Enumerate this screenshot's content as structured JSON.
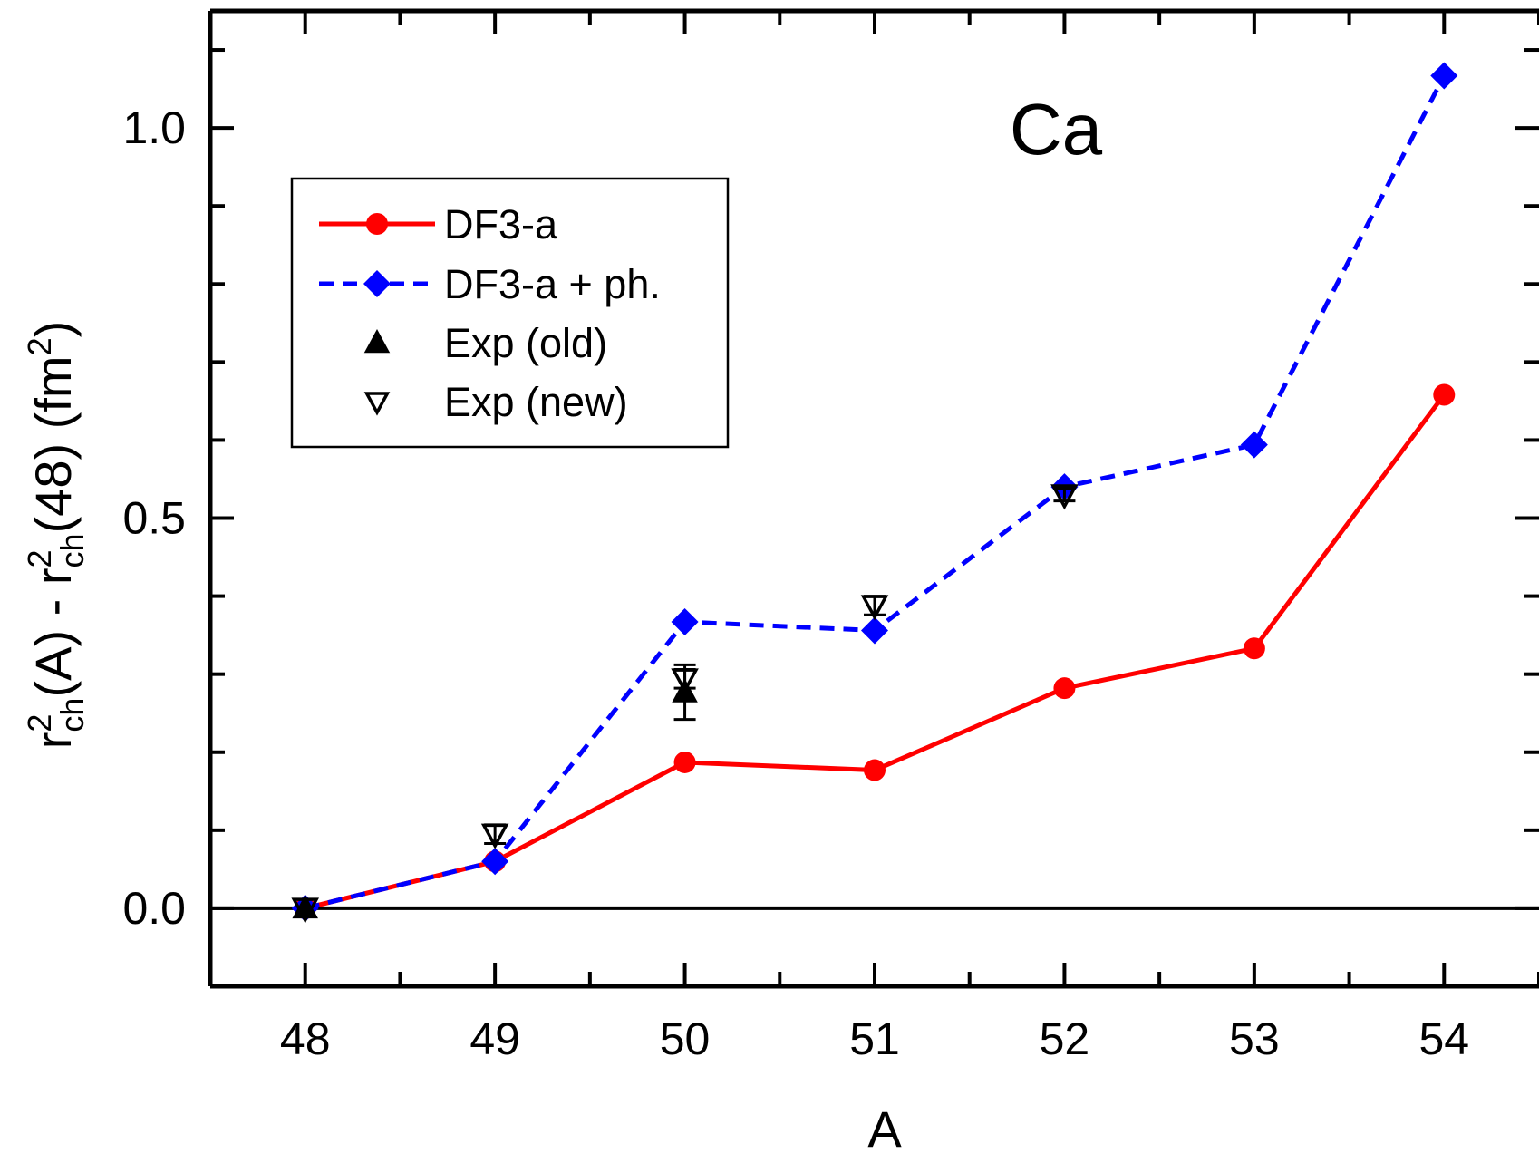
{
  "chart_data": {
    "type": "line",
    "annotation": "Ca",
    "xlabel": "A",
    "ylabel_parts": [
      "r",
      "2",
      "ch",
      "(A) - r",
      "2",
      "ch",
      "(48) (fm",
      "2",
      ")"
    ],
    "x": [
      48,
      49,
      50,
      51,
      52,
      53,
      54
    ],
    "xlim": [
      47.5,
      54.5
    ],
    "ylim": [
      -0.1,
      1.15
    ],
    "xticks": [
      {
        "value": 48,
        "label": "48"
      },
      {
        "value": 49,
        "label": "49"
      },
      {
        "value": 50,
        "label": "50"
      },
      {
        "value": 51,
        "label": "51"
      },
      {
        "value": 52,
        "label": "52"
      },
      {
        "value": 53,
        "label": "53"
      },
      {
        "value": 54,
        "label": "54"
      }
    ],
    "yticks": [
      {
        "value": 0.0,
        "label": "0.0"
      },
      {
        "value": 0.5,
        "label": "0.5"
      },
      {
        "value": 1.0,
        "label": "1.0"
      }
    ],
    "yminor_step": 0.1,
    "xminor_step": 0.5,
    "zero_line": true,
    "legend_position": "upper-left",
    "series": [
      {
        "name": "DF3-a",
        "color": "#ff0000",
        "line": "solid",
        "marker": "circle",
        "x": [
          48,
          49,
          50,
          51,
          52,
          53,
          54
        ],
        "y": [
          0.0,
          0.06,
          0.187,
          0.177,
          0.282,
          0.333,
          0.658
        ]
      },
      {
        "name": "DF3-a + ph.",
        "color": "#0000ff",
        "line": "dashed",
        "marker": "diamond",
        "x": [
          48,
          49,
          50,
          51,
          52,
          53,
          54
        ],
        "y": [
          0.0,
          0.06,
          0.367,
          0.356,
          0.54,
          0.594,
          1.067
        ]
      },
      {
        "name": "Exp (old)",
        "color": "#000000",
        "line": "none",
        "marker": "triangle-up",
        "x": [
          48,
          50
        ],
        "y": [
          0.0,
          0.277
        ],
        "yerr": [
          0.0,
          0.035
        ]
      },
      {
        "name": "Exp (new)",
        "color": "#000000",
        "line": "none",
        "marker": "triangle-down-open",
        "x": [
          48,
          49,
          50,
          51,
          52
        ],
        "y": [
          0.0,
          0.095,
          0.294,
          0.388,
          0.53
        ],
        "yerr": [
          0.0,
          0.012,
          0.012,
          0.012,
          0.008
        ]
      }
    ]
  }
}
